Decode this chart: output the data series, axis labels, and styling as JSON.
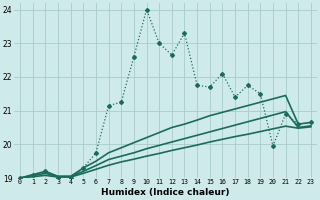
{
  "xlabel": "Humidex (Indice chaleur)",
  "background_color": "#ceeaea",
  "grid_color": "#a8cccc",
  "line_color": "#1a6b5a",
  "xlim": [
    -0.5,
    23.5
  ],
  "ylim": [
    19,
    24.2
  ],
  "yticks": [
    19,
    20,
    21,
    22,
    23,
    24
  ],
  "xticks": [
    0,
    1,
    2,
    3,
    4,
    5,
    6,
    7,
    8,
    9,
    10,
    11,
    12,
    13,
    14,
    15,
    16,
    17,
    18,
    19,
    20,
    21,
    22,
    23
  ],
  "lines": [
    {
      "x": [
        0,
        1,
        2,
        3,
        4,
        5,
        6,
        7,
        8,
        9,
        10,
        11,
        12,
        13,
        14,
        15,
        16,
        17,
        18,
        19,
        20,
        21,
        22,
        23
      ],
      "y": [
        19.0,
        19.1,
        19.2,
        19.0,
        19.0,
        19.3,
        19.75,
        21.15,
        21.25,
        22.6,
        24.0,
        23.0,
        22.65,
        23.3,
        21.75,
        21.7,
        22.1,
        21.4,
        21.75,
        21.5,
        19.95,
        20.9,
        20.6,
        20.65
      ],
      "marker": "D",
      "markersize": 2.0,
      "linewidth": 0.9,
      "linestyle": ":"
    },
    {
      "x": [
        0,
        1,
        2,
        3,
        4,
        5,
        6,
        7,
        8,
        9,
        10,
        11,
        12,
        13,
        14,
        15,
        16,
        17,
        18,
        19,
        20,
        21,
        22,
        23
      ],
      "y": [
        19.0,
        19.1,
        19.2,
        19.05,
        19.05,
        19.3,
        19.5,
        19.75,
        19.9,
        20.05,
        20.2,
        20.35,
        20.5,
        20.6,
        20.72,
        20.85,
        20.95,
        21.05,
        21.15,
        21.25,
        21.35,
        21.45,
        20.6,
        20.65
      ],
      "marker": null,
      "markersize": 0,
      "linewidth": 1.2,
      "linestyle": "-"
    },
    {
      "x": [
        0,
        1,
        2,
        3,
        4,
        5,
        6,
        7,
        8,
        9,
        10,
        11,
        12,
        13,
        14,
        15,
        16,
        17,
        18,
        19,
        20,
        21,
        22,
        23
      ],
      "y": [
        19.0,
        19.07,
        19.14,
        19.05,
        19.05,
        19.2,
        19.37,
        19.55,
        19.65,
        19.75,
        19.87,
        19.97,
        20.07,
        20.17,
        20.27,
        20.37,
        20.47,
        20.57,
        20.67,
        20.77,
        20.87,
        20.97,
        20.5,
        20.55
      ],
      "marker": null,
      "markersize": 0,
      "linewidth": 1.2,
      "linestyle": "-"
    },
    {
      "x": [
        0,
        1,
        2,
        3,
        4,
        5,
        6,
        7,
        8,
        9,
        10,
        11,
        12,
        13,
        14,
        15,
        16,
        17,
        18,
        19,
        20,
        21,
        22,
        23
      ],
      "y": [
        19.0,
        19.04,
        19.08,
        19.03,
        19.03,
        19.14,
        19.26,
        19.38,
        19.48,
        19.56,
        19.65,
        19.73,
        19.82,
        19.9,
        19.98,
        20.07,
        20.15,
        20.23,
        20.3,
        20.38,
        20.46,
        20.54,
        20.48,
        20.52
      ],
      "marker": null,
      "markersize": 0,
      "linewidth": 1.2,
      "linestyle": "-"
    }
  ]
}
